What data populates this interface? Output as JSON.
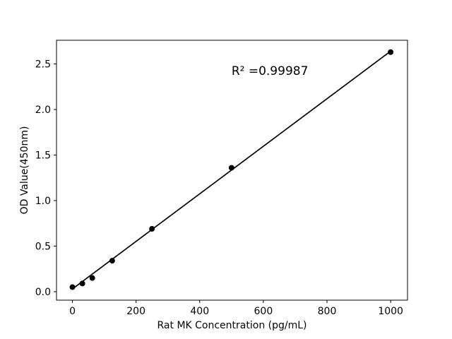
{
  "chart_data": {
    "type": "scatter",
    "title": "",
    "xlabel": "Rat MK Concentration (pg/mL)",
    "ylabel": "OD Value(450nm)",
    "annotation": {
      "text": "R² =0.99987",
      "x": 500,
      "y": 2.42
    },
    "x": [
      0,
      31.25,
      62.5,
      125,
      250,
      500,
      1000
    ],
    "y": [
      0.05,
      0.09,
      0.15,
      0.34,
      0.69,
      1.36,
      2.63
    ],
    "trendline": {
      "x": [
        0,
        1000
      ],
      "y": [
        0.03,
        2.64
      ]
    },
    "xtick_labels": [
      "0",
      "200",
      "400",
      "600",
      "800",
      "1000"
    ],
    "xtick_values": [
      0,
      200,
      400,
      600,
      800,
      1000
    ],
    "ytick_labels": [
      "0.0",
      "0.5",
      "1.0",
      "1.5",
      "2.0",
      "2.5"
    ],
    "ytick_values": [
      0.0,
      0.5,
      1.0,
      1.5,
      2.0,
      2.5
    ],
    "xlim": [
      -50,
      1053
    ],
    "ylim": [
      -0.093,
      2.76
    ],
    "grid": false,
    "legend_position": "none",
    "marker_color": "#000000",
    "line_color": "#000000",
    "axis_color": "#000000",
    "background_color": "#ffffff"
  }
}
